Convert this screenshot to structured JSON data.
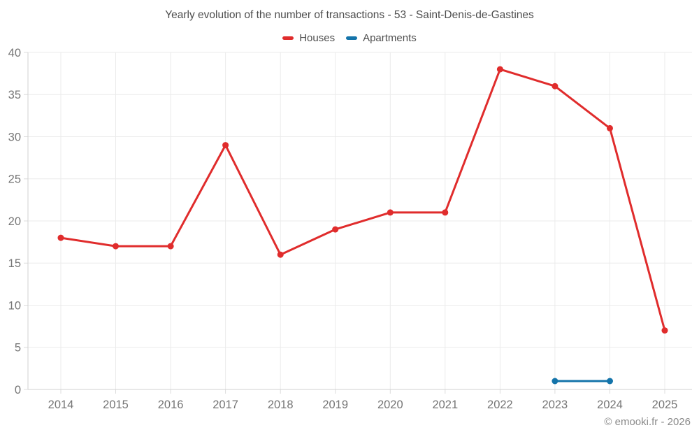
{
  "chart_data": {
    "type": "line",
    "title": "Yearly evolution of the number of transactions - 53 - Saint-Denis-de-Gastines",
    "categories": [
      "2014",
      "2015",
      "2016",
      "2017",
      "2018",
      "2019",
      "2020",
      "2021",
      "2022",
      "2023",
      "2024",
      "2025"
    ],
    "series": [
      {
        "name": "Houses",
        "color": "#e02c2c",
        "values": [
          18,
          17,
          17,
          29,
          16,
          19,
          21,
          21,
          38,
          36,
          31,
          7
        ]
      },
      {
        "name": "Apartments",
        "color": "#1474aa",
        "values": [
          null,
          null,
          null,
          null,
          null,
          null,
          null,
          null,
          null,
          1,
          1,
          null
        ]
      }
    ],
    "xlabel": "",
    "ylabel": "",
    "ylim": [
      0,
      40
    ],
    "yticks": [
      0,
      5,
      10,
      15,
      20,
      25,
      30,
      35,
      40
    ],
    "grid": true,
    "legend_position": "top",
    "colors": {
      "grid": "#ebebeb",
      "axis": "#d2d2d2",
      "tick": "#dcdcdc",
      "tick_label": "#757575",
      "title": "#4d4d4d"
    }
  },
  "footer": {
    "text": "© emooki.fr - 2026"
  }
}
